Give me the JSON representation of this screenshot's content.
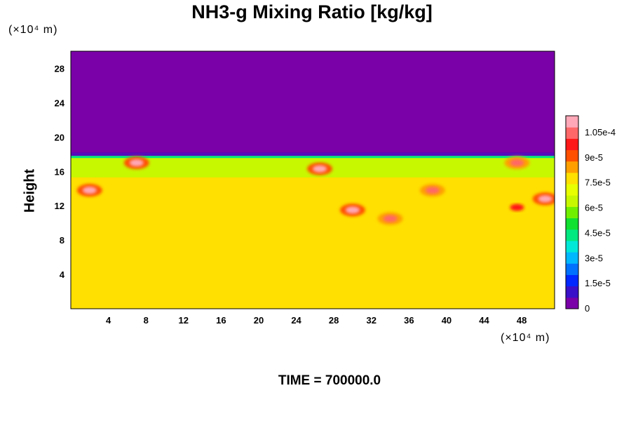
{
  "chart_data": {
    "type": "heatmap",
    "title": "NH3-g Mixing Ratio [kg/kg]",
    "xlabel": "",
    "ylabel": "Height",
    "x_unit": "(×10⁴ m)",
    "y_unit": "(×10⁴ m)",
    "xlim": [
      0,
      51.5
    ],
    "ylim": [
      0,
      30
    ],
    "x_ticks": [
      4,
      8,
      12,
      16,
      20,
      24,
      28,
      32,
      36,
      40,
      44,
      48
    ],
    "y_ticks": [
      4,
      8,
      12,
      16,
      20,
      24,
      28
    ],
    "grid": false,
    "colorbar": {
      "min": 0,
      "max": 0.000115,
      "tick_values": [
        0,
        1.5e-05,
        3e-05,
        4.5e-05,
        6e-05,
        7.5e-05,
        9e-05,
        0.000105
      ],
      "tick_labels": [
        "0",
        "1.5e-5",
        "3e-5",
        "4.5e-5",
        "6e-5",
        "7.5e-5",
        "9e-5",
        "1.05e-4"
      ],
      "colors": [
        "#7a00a8",
        "#3a10c8",
        "#0028ff",
        "#0070ff",
        "#00b8ff",
        "#00e8d8",
        "#00e880",
        "#10e030",
        "#70f000",
        "#c8f800",
        "#e8ff00",
        "#ffe000",
        "#ffa000",
        "#ff5000",
        "#ff1818",
        "#ff6868",
        "#ffa8b8"
      ]
    },
    "fields": {
      "tropopause_height": 17.8,
      "upper_value": 0,
      "lower_background_value": 7.7e-05,
      "green_band": [
        15.3,
        17.8
      ],
      "enhanced_features": [
        {
          "x": 7,
          "y": 17,
          "level": 0.00011
        },
        {
          "x": 2,
          "y": 13.8,
          "level": 0.00011
        },
        {
          "x": 26.5,
          "y": 16.3,
          "level": 0.00011
        },
        {
          "x": 34,
          "y": 10.5,
          "level": 0.000105
        },
        {
          "x": 30,
          "y": 11.5,
          "level": 0.00011
        },
        {
          "x": 38.5,
          "y": 13.8,
          "level": 0.000105
        },
        {
          "x": 47.5,
          "y": 11.8,
          "level": 9.5e-05
        },
        {
          "x": 50.5,
          "y": 12.8,
          "level": 0.00011
        },
        {
          "x": 47.5,
          "y": 17,
          "level": 0.000105
        }
      ]
    }
  },
  "footer": {
    "time_label": "TIME = 700000.0"
  }
}
